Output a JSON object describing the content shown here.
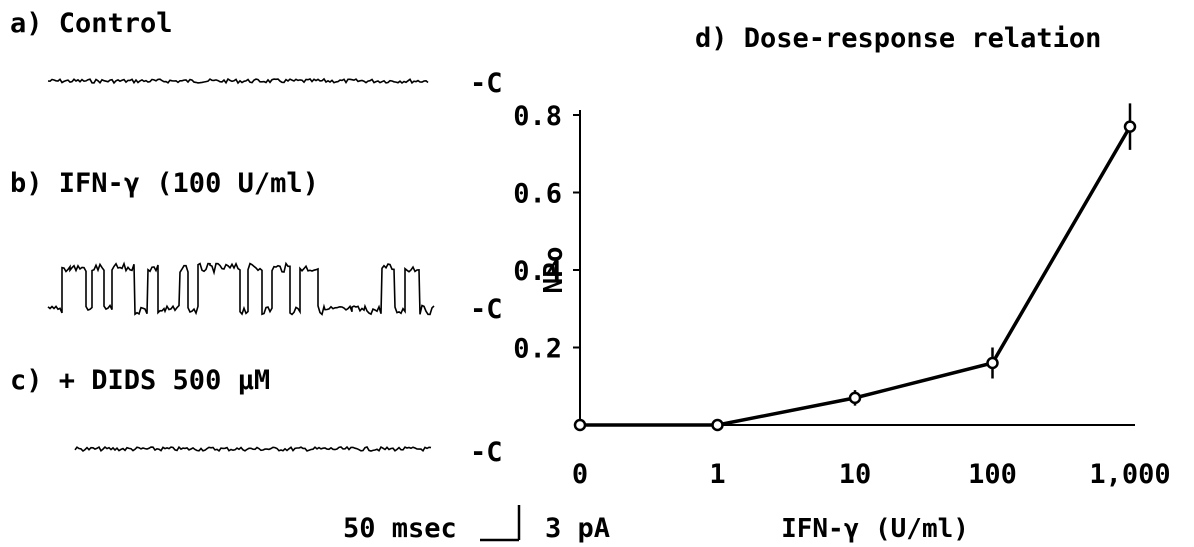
{
  "panels": {
    "a": {
      "label": "a) Control",
      "closed_marker": "-C"
    },
    "b": {
      "label": "b) IFN-γ (100 U/ml)",
      "closed_marker": "-C"
    },
    "c": {
      "label": "c) + DIDS 500 μM",
      "closed_marker": "-C"
    }
  },
  "scale_bar": {
    "time_label": "50 msec",
    "current_label": "3 pA"
  },
  "chart_data": {
    "type": "line",
    "title": "d) Dose-response relation",
    "xlabel": "IFN-γ (U/ml)",
    "ylabel": "NPo",
    "x_tick_labels": [
      "0",
      "1",
      "10",
      "100",
      "1,000"
    ],
    "y_tick_labels": [
      "0.2",
      "0.4",
      "0.6",
      "0.8"
    ],
    "ylim": [
      0,
      0.8
    ],
    "x_scale": "log (0 shown as first category)",
    "series": [
      {
        "x": [
          "0",
          "1",
          "10",
          "100",
          "1,000"
        ],
        "y": [
          0.0,
          0.0,
          0.07,
          0.16,
          0.77
        ],
        "error": [
          0.0,
          0.0,
          0.02,
          0.04,
          0.06
        ]
      }
    ],
    "grid": false,
    "marker": "open circle"
  }
}
